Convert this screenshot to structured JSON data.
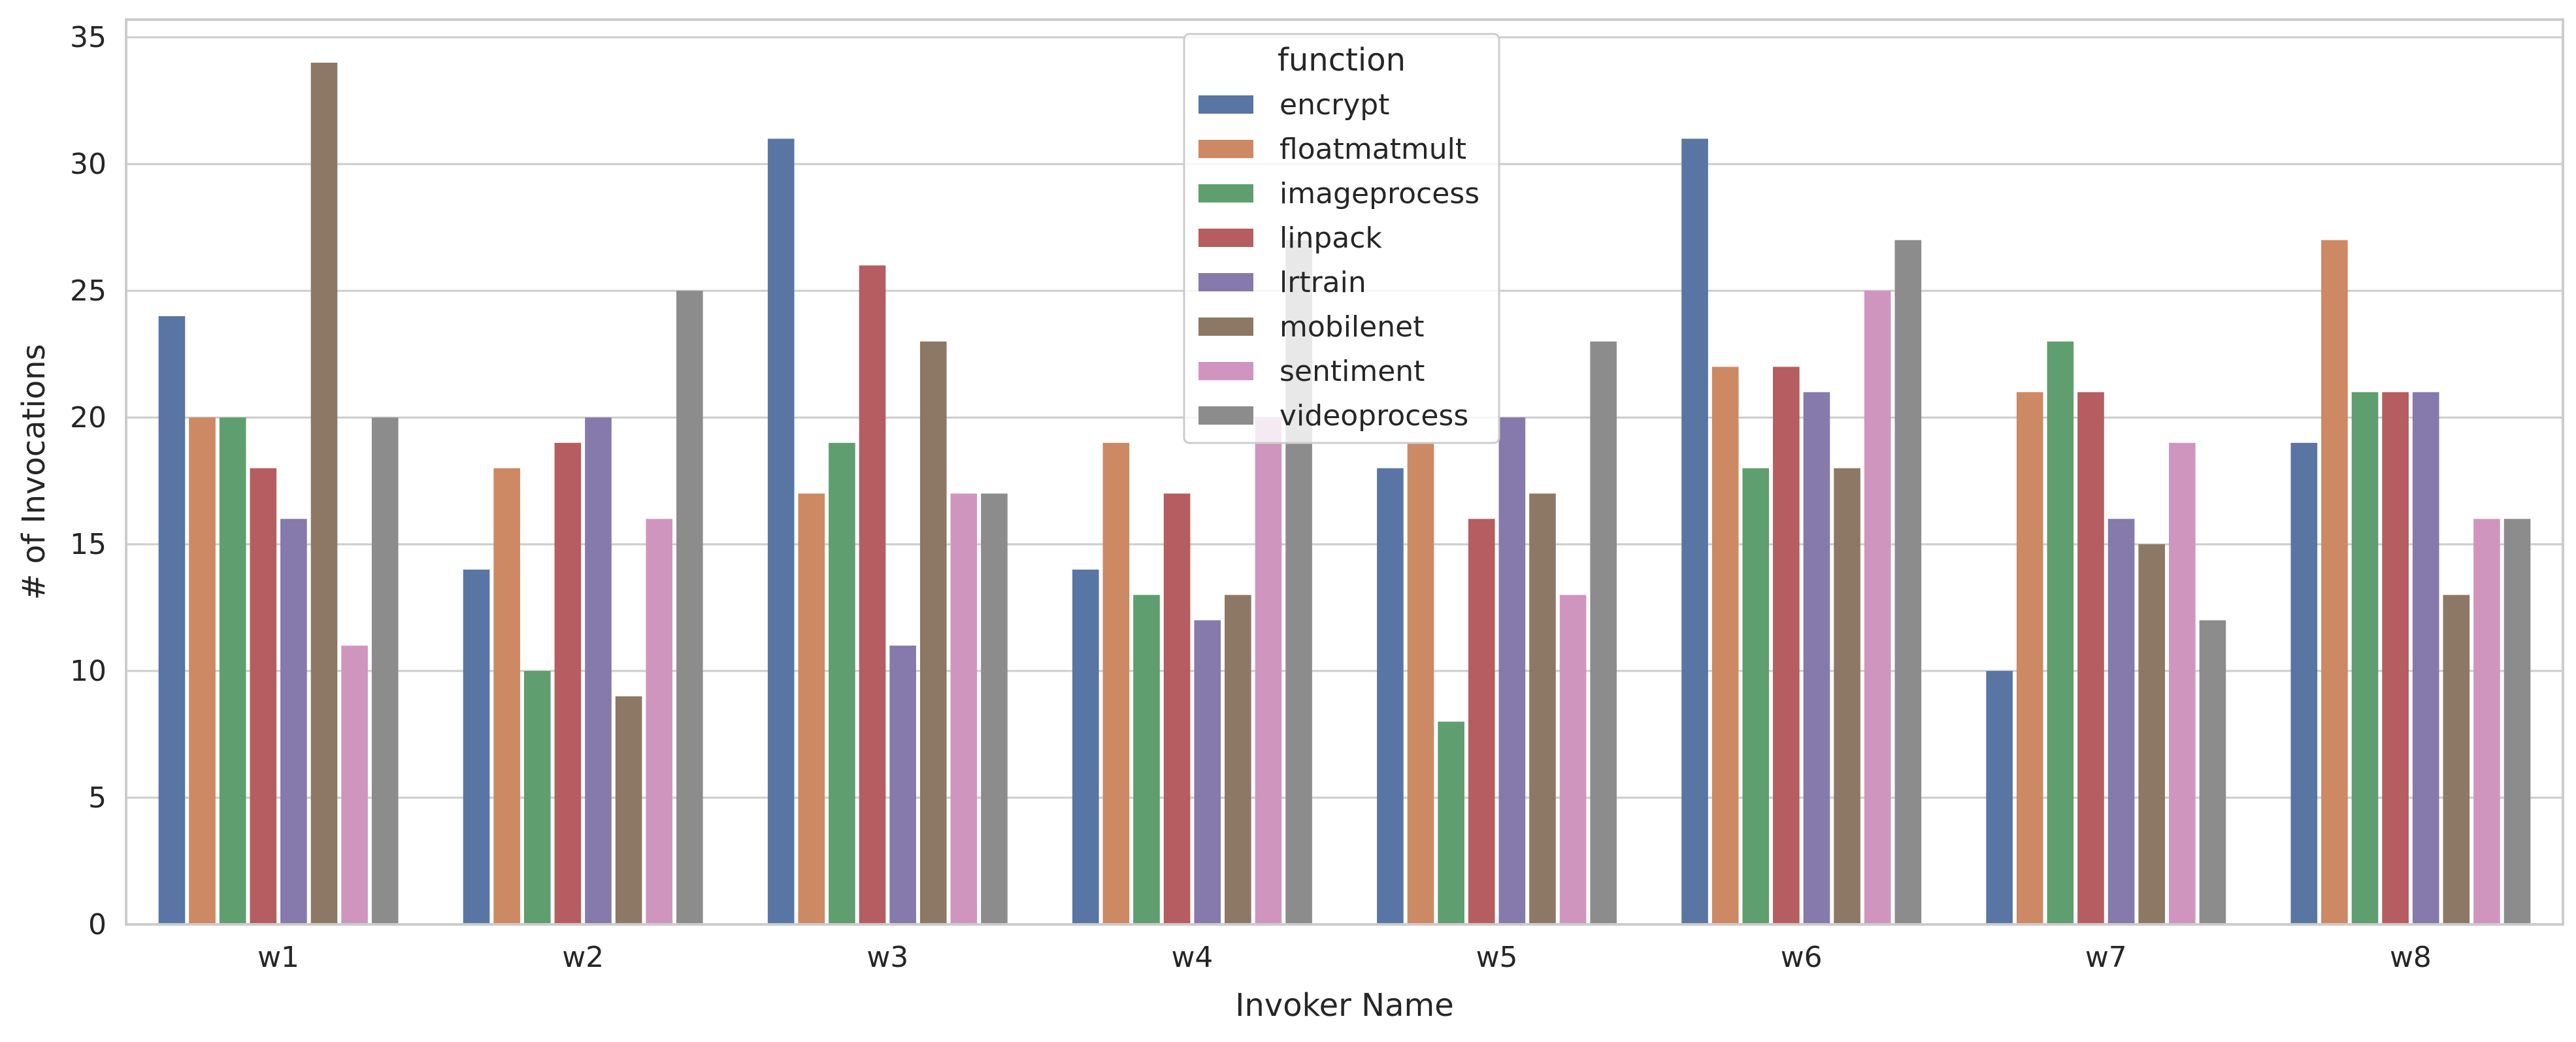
{
  "chart_data": {
    "type": "bar",
    "xlabel": "Invoker Name",
    "ylabel": "# of Invocations",
    "categories": [
      "w1",
      "w2",
      "w3",
      "w4",
      "w5",
      "w6",
      "w7",
      "w8"
    ],
    "ylim": [
      0,
      35.7
    ],
    "yticks": [
      "0",
      "5",
      "10",
      "15",
      "20",
      "25",
      "30",
      "35"
    ],
    "grid": true,
    "legend": {
      "title": "function",
      "placement": "top-center"
    },
    "series": [
      {
        "name": "encrypt",
        "color": "#5975a4",
        "values": [
          24,
          14,
          31,
          14,
          18,
          31,
          10,
          19
        ]
      },
      {
        "name": "floatmatmult",
        "color": "#cc8963",
        "values": [
          20,
          18,
          17,
          19,
          19,
          22,
          21,
          27
        ]
      },
      {
        "name": "imageprocess",
        "color": "#5f9e6e",
        "values": [
          20,
          10,
          19,
          13,
          8,
          18,
          23,
          21
        ]
      },
      {
        "name": "linpack",
        "color": "#b55d60",
        "values": [
          18,
          19,
          26,
          17,
          16,
          22,
          21,
          21
        ]
      },
      {
        "name": "lrtrain",
        "color": "#857aab",
        "values": [
          16,
          20,
          11,
          12,
          20,
          21,
          16,
          21
        ]
      },
      {
        "name": "mobilenet",
        "color": "#8d7866",
        "values": [
          34,
          9,
          23,
          13,
          17,
          18,
          15,
          13
        ]
      },
      {
        "name": "sentiment",
        "color": "#d095bf",
        "values": [
          11,
          16,
          17,
          20,
          13,
          25,
          19,
          16
        ]
      },
      {
        "name": "videoprocess",
        "color": "#8c8c8c",
        "values": [
          20,
          25,
          17,
          27,
          23,
          27,
          12,
          16
        ]
      }
    ]
  }
}
